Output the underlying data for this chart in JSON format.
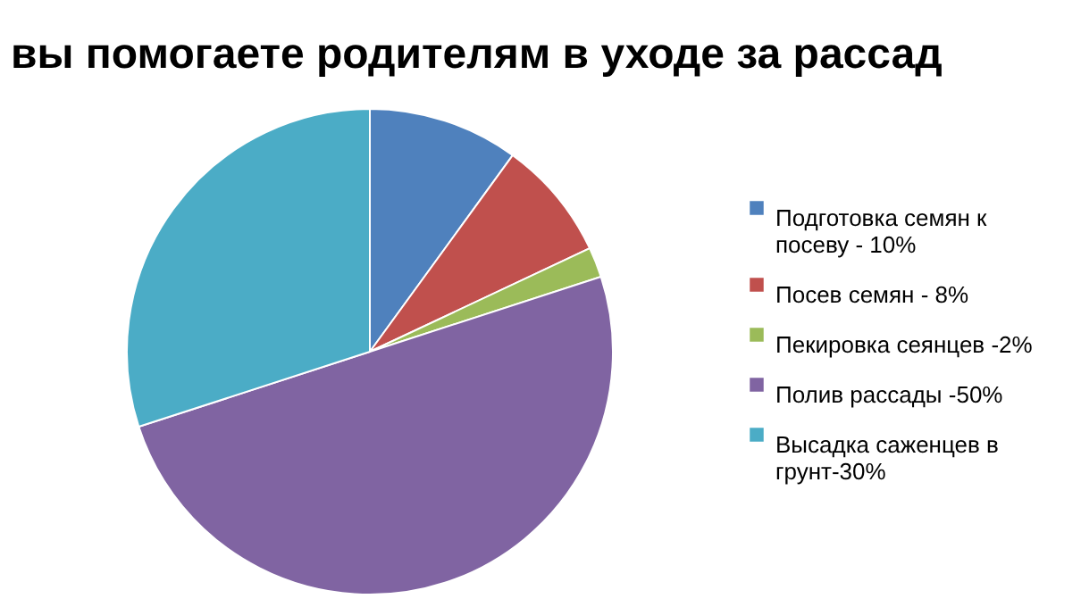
{
  "chart_data": {
    "type": "pie",
    "title": "вы помогаете родителям в уходе за рассад",
    "categories": [
      "Подготовка семян к посеву - 10%",
      "Посев семян - 8%",
      "Пекировка сеянцев -2%",
      "Полив рассады -50%",
      "Высадка саженцев в грунт-30%"
    ],
    "values": [
      10,
      8,
      2,
      50,
      30
    ],
    "colors": [
      "#4f81bd",
      "#c0504d",
      "#9bbb59",
      "#8064a2",
      "#4bacc6"
    ],
    "legend": "right"
  }
}
